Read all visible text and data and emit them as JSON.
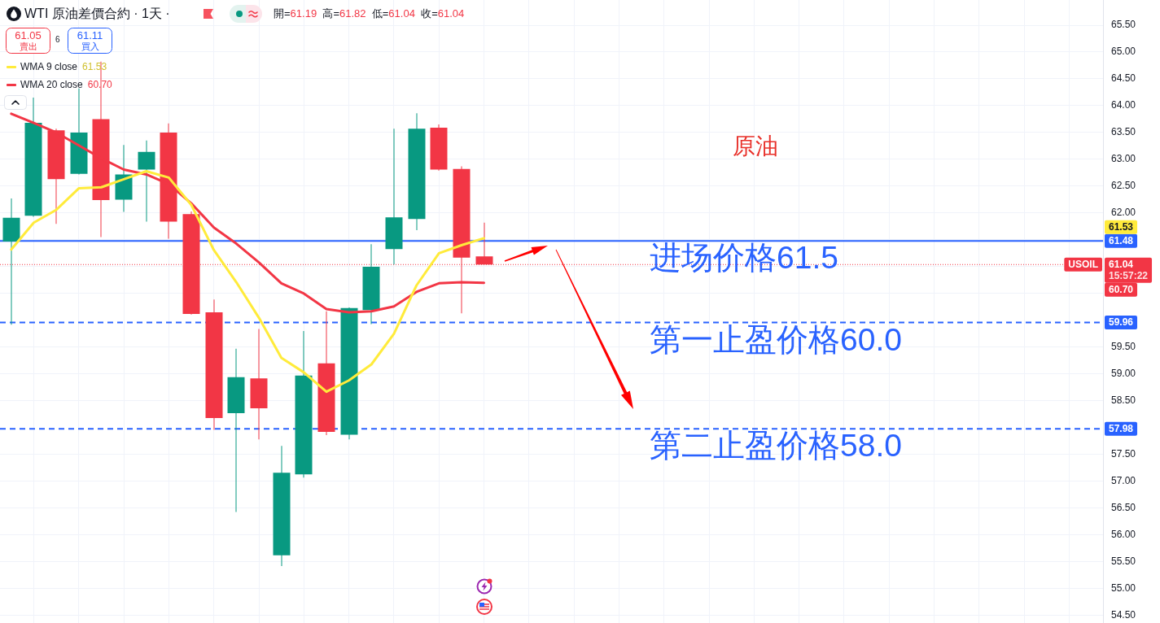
{
  "chart_data": {
    "type": "candlestick",
    "title": "WTI 原油差價合約 · 1天 ·",
    "subtitle": "開=61.19 高=61.82 低=61.04 收=61.04",
    "categories": [
      null,
      null,
      null,
      null,
      null,
      null,
      null,
      null,
      null,
      null,
      null,
      null,
      null,
      null,
      null,
      null,
      null,
      null,
      null,
      null,
      null,
      null,
      null,
      null,
      null,
      null,
      null,
      null,
      null,
      null,
      null,
      null,
      null,
      null,
      null,
      null,
      null,
      null,
      null,
      null,
      null,
      null,
      null,
      null,
      null,
      null,
      null,
      null,
      null
    ],
    "ohlc": [
      [
        61.47,
        62.27,
        59.92,
        61.91
      ],
      [
        61.95,
        64.15,
        61.93,
        63.68
      ],
      [
        63.54,
        63.57,
        61.8,
        62.63
      ],
      [
        62.73,
        64.32,
        62.72,
        63.5
      ],
      [
        63.75,
        64.82,
        61.55,
        62.24
      ],
      [
        62.25,
        63.27,
        62.02,
        62.72
      ],
      [
        62.81,
        63.35,
        61.84,
        63.14
      ],
      [
        63.5,
        63.67,
        61.52,
        61.84
      ],
      [
        61.98,
        62.03,
        60.11,
        60.12
      ],
      [
        60.15,
        60.39,
        57.96,
        58.18
      ],
      [
        58.27,
        59.47,
        56.43,
        58.94
      ],
      [
        58.92,
        59.84,
        57.78,
        58.36
      ],
      [
        55.62,
        57.66,
        55.42,
        57.16
      ],
      [
        57.13,
        59.8,
        57.07,
        58.97
      ],
      [
        59.2,
        60.17,
        57.86,
        57.92
      ],
      [
        57.87,
        60.24,
        57.78,
        60.23
      ],
      [
        60.19,
        61.42,
        59.93,
        61.0
      ],
      [
        61.33,
        63.57,
        61.04,
        61.92
      ],
      [
        61.89,
        63.86,
        61.68,
        63.57
      ],
      [
        63.59,
        63.65,
        62.79,
        62.81
      ],
      [
        62.82,
        62.87,
        60.13,
        61.17
      ],
      [
        61.19,
        61.82,
        61.04,
        61.04
      ],
      null,
      null,
      null,
      null,
      null,
      null,
      null,
      null,
      null,
      null,
      null,
      null,
      null,
      null,
      null,
      null,
      null,
      null,
      null,
      null,
      null,
      null,
      null,
      null,
      null,
      null,
      null
    ],
    "colors": [
      "#089981",
      "#089981",
      "#f23645",
      "#089981",
      "#f23645",
      "#089981",
      "#089981",
      "#f23645",
      "#f23645",
      "#f23645",
      "#089981",
      "#f23645",
      "#089981",
      "#089981",
      "#f23645",
      "#089981",
      "#089981",
      "#089981",
      "#089981",
      "#f23645",
      "#f23645",
      "#f23645",
      null,
      null,
      null,
      null,
      null,
      null,
      null,
      null,
      null,
      null,
      null,
      null,
      null,
      null,
      null,
      null,
      null,
      null,
      null,
      null,
      null,
      null,
      null,
      null,
      null,
      null,
      null
    ],
    "series": [
      {
        "name": "WMA 9 close",
        "type": "line",
        "color": "#ffeb3b",
        "values": [
          61.32,
          61.82,
          62.06,
          62.46,
          62.48,
          62.63,
          62.78,
          62.66,
          62.15,
          61.31,
          60.71,
          60.05,
          59.3,
          59.03,
          58.67,
          58.88,
          59.18,
          59.75,
          60.65,
          61.25,
          61.4,
          61.53,
          null,
          null,
          null,
          null,
          null,
          null,
          null,
          null,
          null,
          null,
          null,
          null,
          null,
          null,
          null,
          null,
          null,
          null,
          null,
          null,
          null,
          null,
          null,
          null,
          null,
          null,
          null
        ]
      },
      {
        "name": "WMA 20 close",
        "type": "line",
        "color": "#f23645",
        "values": [
          63.85,
          63.68,
          63.5,
          63.26,
          63.02,
          62.81,
          62.72,
          62.54,
          62.18,
          61.73,
          61.43,
          61.08,
          60.69,
          60.5,
          60.21,
          60.15,
          60.17,
          60.26,
          60.53,
          60.69,
          60.71,
          60.7,
          null,
          null,
          null,
          null,
          null,
          null,
          null,
          null,
          null,
          null,
          null,
          null,
          null,
          null,
          null,
          null,
          null,
          null,
          null,
          null,
          null,
          null,
          null,
          null,
          null,
          null,
          null
        ]
      }
    ],
    "ylim": [
      54.36,
      65.97
    ],
    "yticks": [
      {
        "value": 54.5,
        "label": "54.50"
      },
      {
        "value": 55,
        "label": "55.00"
      },
      {
        "value": 55.5,
        "label": "55.50"
      },
      {
        "value": 56,
        "label": "56.00"
      },
      {
        "value": 56.5,
        "label": "56.50"
      },
      {
        "value": 57,
        "label": "57.00"
      },
      {
        "value": 57.5,
        "label": "57.50"
      },
      {
        "value": 58.5,
        "label": "58.50"
      },
      {
        "value": 59,
        "label": "59.00"
      },
      {
        "value": 59.5,
        "label": "59.50"
      },
      {
        "value": 60.5,
        "label": null
      },
      {
        "value": 61,
        "label": null
      },
      {
        "value": 61.5,
        "label": null
      },
      {
        "value": 62,
        "label": "62.00"
      },
      {
        "value": 62.5,
        "label": "62.50"
      },
      {
        "value": 63,
        "label": "63.00"
      },
      {
        "value": 63.5,
        "label": "63.50"
      },
      {
        "value": 64,
        "label": "64.00"
      },
      {
        "value": 64.5,
        "label": "64.50"
      },
      {
        "value": 65,
        "label": "65.00"
      },
      {
        "value": 65.5,
        "label": "65.50"
      }
    ],
    "ref_lines": [
      {
        "axis": "y",
        "value": 61.48,
        "label": "61.48",
        "color": "#2962ff",
        "line_style": "solid"
      },
      {
        "axis": "y",
        "value": 61.04,
        "label": "61.04\n15:57:22",
        "color": "#f23645",
        "line_style": "dotted"
      },
      {
        "axis": "y",
        "value": 59.96,
        "label": "59.96",
        "color": "#2962ff",
        "line_style": "dashed"
      },
      {
        "axis": "y",
        "value": 57.98,
        "label": "57.98",
        "color": "#2962ff",
        "line_style": "dashed"
      }
    ],
    "annotations": [
      "61.05",
      "賣出",
      "6",
      "61.11",
      "買入",
      "61.53",
      "60.70",
      "原油",
      {
        "text": "USOIL",
        "y": 61.04
      },
      "61.53",
      "60.70",
      {
        "text": "进场价格61.5",
        "y": 61.48
      },
      {
        "text": "第一止盈价格60.0",
        "y": 59.96
      },
      {
        "text": "第二止盈价格58.0",
        "y": 57.98
      }
    ],
    "grid": true,
    "legend": "top left",
    "tick_labels": "y"
  }
}
